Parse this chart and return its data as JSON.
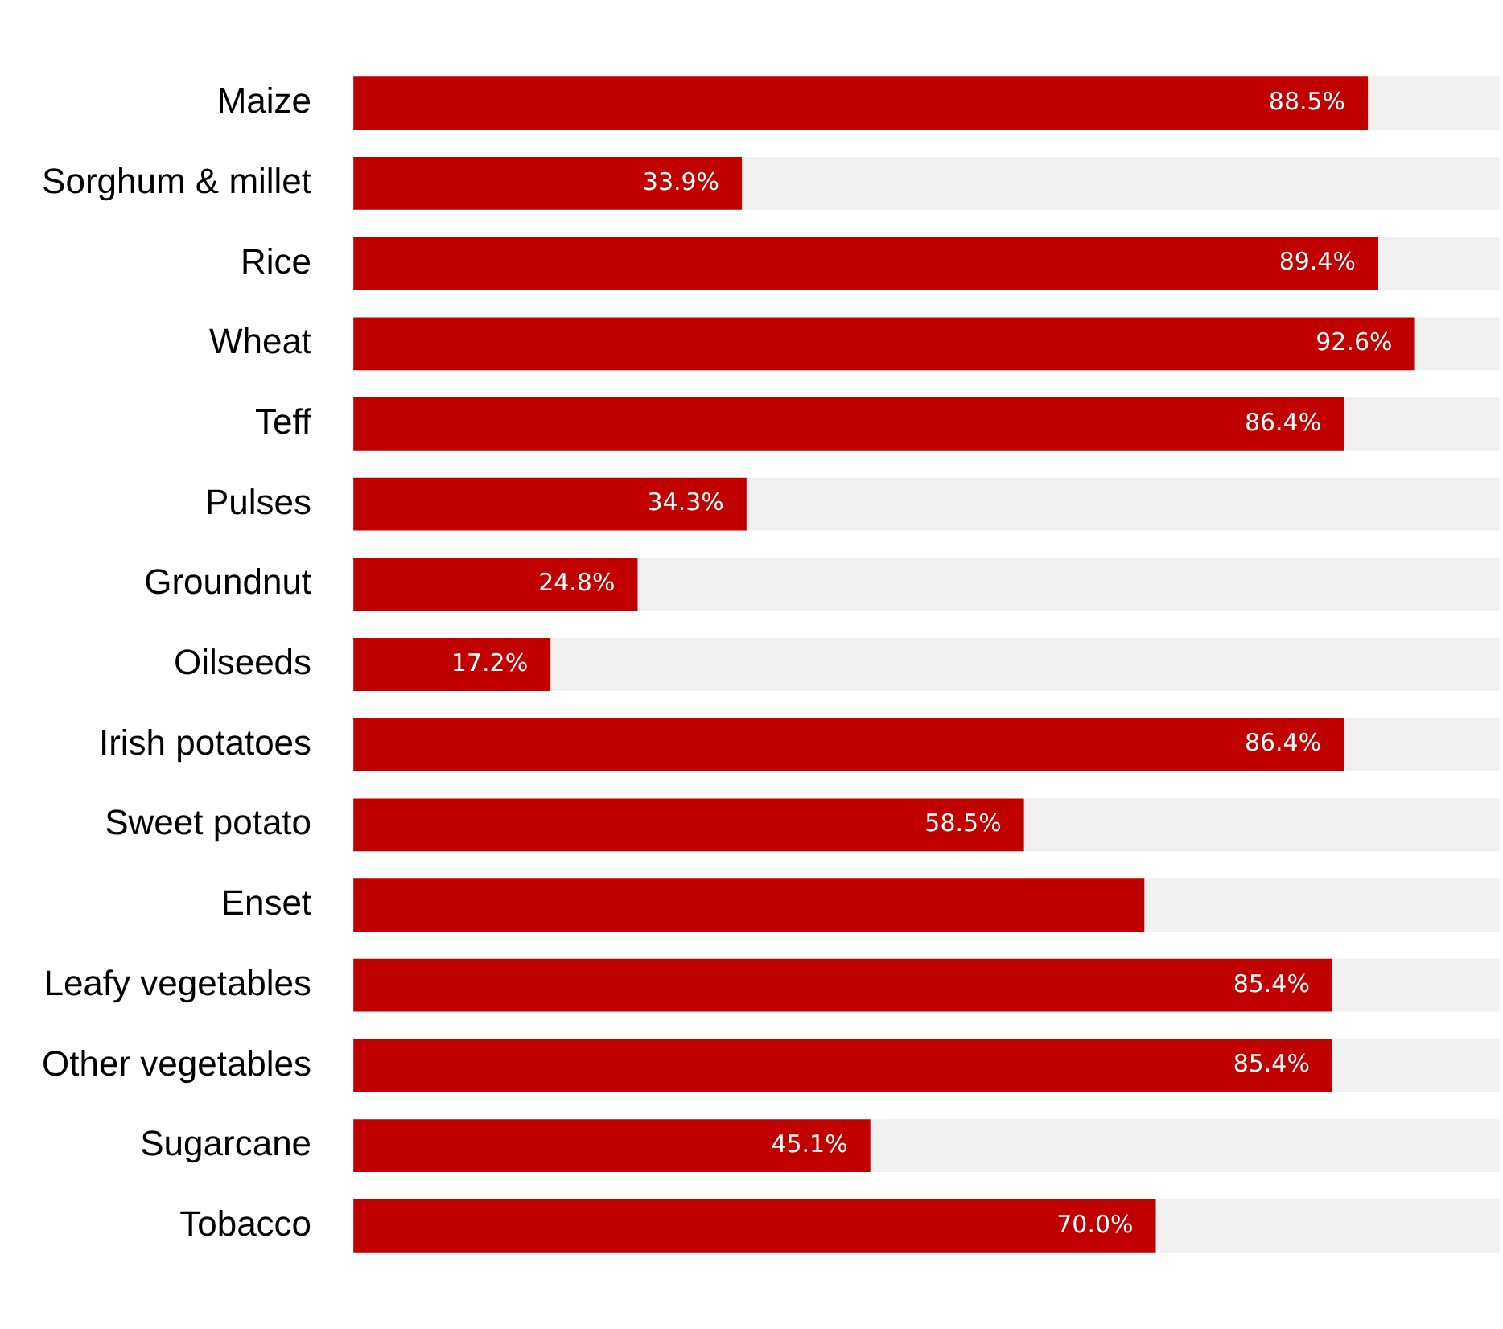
{
  "chart_data": {
    "type": "bar",
    "orientation": "horizontal",
    "categories": [
      "Maize",
      "Sorghum & millet",
      "Rice",
      "Wheat",
      "Teff",
      "Pulses",
      "Groundnut",
      "Oilseeds",
      "Irish potatoes",
      "Sweet potato",
      "Enset",
      "Leafy vegetables",
      "Other vegetables",
      "Sugarcane",
      "Tobacco"
    ],
    "series": [
      {
        "color": "#c00000",
        "values": [
          88.5,
          33.9,
          89.4,
          92.6,
          86.4,
          34.3,
          24.8,
          17.2,
          86.4,
          58.5,
          69.0,
          85.4,
          85.4,
          45.1,
          70.0
        ],
        "value_labels": [
          "88.5%",
          "33.9%",
          "89.4%",
          "92.6%",
          "86.4%",
          "34.3%",
          "24.8%",
          "17.2%",
          "86.4%",
          "58.5%",
          null,
          "85.4%",
          "85.4%",
          "45.1%",
          "70.0%"
        ]
      },
      {
        "color": "#f0f0f0",
        "values": [
          11.5,
          66.1,
          10.6,
          7.4,
          13.6,
          65.7,
          75.2,
          82.8,
          13.6,
          41.5,
          31.0,
          14.6,
          14.6,
          54.9,
          30.0
        ]
      }
    ],
    "stacked": true,
    "xlim": [
      0,
      100
    ],
    "tick_labels": "y",
    "legend": false
  }
}
